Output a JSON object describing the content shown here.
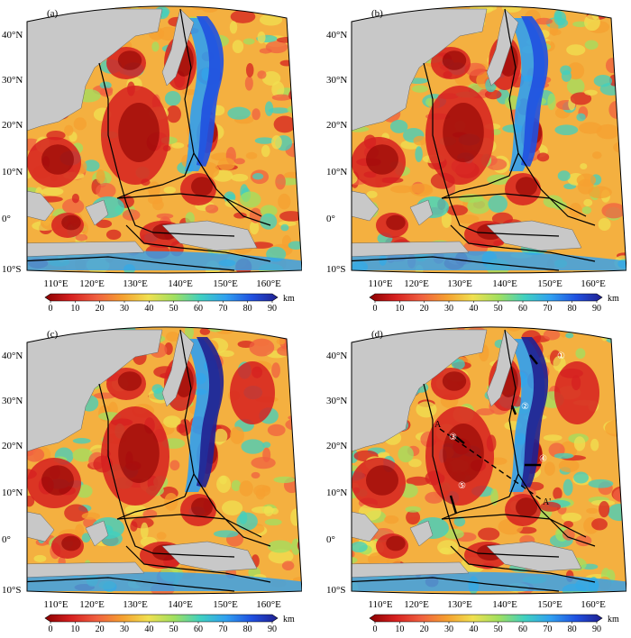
{
  "panels": [
    {
      "label": "(a)",
      "lat_labels": [
        "40°N",
        "30°N",
        "20°N",
        "10°N",
        "0°",
        "10°S"
      ],
      "lon_labels": [
        "110°E",
        "120°E",
        "130°E",
        "140°E",
        "150°E",
        "160°E"
      ],
      "colorbar": {
        "ticks": [
          "0",
          "10",
          "20",
          "30",
          "40",
          "50",
          "60",
          "70",
          "80",
          "90"
        ],
        "unit": "km"
      }
    },
    {
      "label": "(b)",
      "lat_labels": [
        "40°N",
        "30°N",
        "20°N",
        "10°N",
        "0°",
        "10°S"
      ],
      "lon_labels": [
        "110°E",
        "120°E",
        "130°E",
        "140°E",
        "150°E",
        "160°E"
      ],
      "colorbar": {
        "ticks": [
          "0",
          "10",
          "20",
          "30",
          "40",
          "50",
          "60",
          "70",
          "80",
          "90"
        ],
        "unit": "km"
      }
    },
    {
      "label": "(c)",
      "lat_labels": [
        "40°N",
        "30°N",
        "20°N",
        "10°N",
        "0°",
        "10°S"
      ],
      "lon_labels": [
        "110°E",
        "120°E",
        "130°E",
        "140°E",
        "150°E",
        "160°E"
      ],
      "colorbar": {
        "ticks": [
          "0",
          "10",
          "20",
          "30",
          "40",
          "50",
          "60",
          "70",
          "80",
          "90"
        ],
        "unit": "km"
      }
    },
    {
      "label": "(d)",
      "lat_labels": [
        "40°N",
        "30°N",
        "20°N",
        "10°N",
        "0°",
        "10°S"
      ],
      "lon_labels": [
        "110°E",
        "120°E",
        "130°E",
        "140°E",
        "150°E",
        "160°E"
      ],
      "colorbar": {
        "ticks": [
          "0",
          "10",
          "20",
          "30",
          "40",
          "50",
          "60",
          "70",
          "80",
          "90"
        ],
        "unit": "km"
      },
      "annotations": {
        "profile_start": "A",
        "profile_end": "A'",
        "markers": [
          "①",
          "②",
          "③",
          "④",
          "⑤"
        ]
      }
    }
  ],
  "colors": {
    "land": "#c8c8c8",
    "scale": [
      "#8b0000",
      "#d62020",
      "#f06040",
      "#f5a030",
      "#f0e050",
      "#a0e060",
      "#40d0c0",
      "#30a0f0",
      "#2050e0",
      "#202090"
    ]
  }
}
